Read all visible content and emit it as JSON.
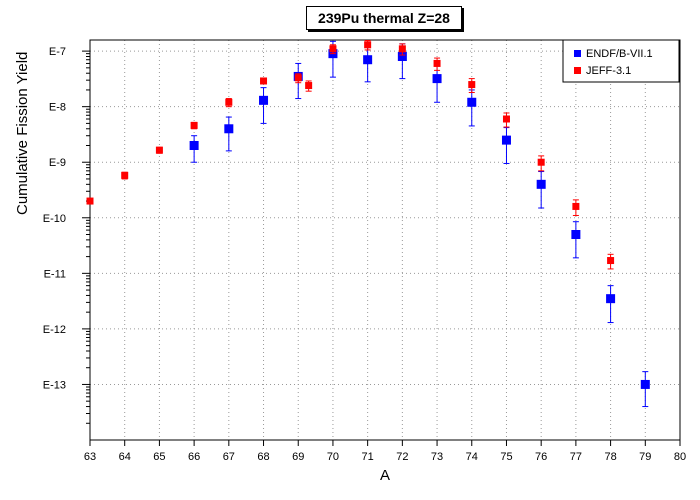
{
  "chart_data": {
    "type": "scatter",
    "title": "239Pu thermal Z=28",
    "xlabel": "A",
    "ylabel": "Cumulative Fission Yield",
    "xlim": [
      63,
      80
    ],
    "ylim_log10": [
      -14,
      -6.8
    ],
    "yscale": "log",
    "grid": true,
    "legend_position": "top-right",
    "x_ticks": [
      "63",
      "64",
      "65",
      "66",
      "67",
      "68",
      "69",
      "70",
      "71",
      "72",
      "73",
      "74",
      "75",
      "76",
      "77",
      "78",
      "79",
      "80"
    ],
    "y_ticks": [
      {
        "label": "E-7",
        "exp": -7
      },
      {
        "label": "E-8",
        "exp": -8
      },
      {
        "label": "E-9",
        "exp": -9
      },
      {
        "label": "E-10",
        "exp": -10
      },
      {
        "label": "E-11",
        "exp": -11
      },
      {
        "label": "E-12",
        "exp": -12
      },
      {
        "label": "E-13",
        "exp": -13
      }
    ],
    "series": [
      {
        "name": "ENDF/B-VII.1",
        "color": "#0000ff",
        "marker": "square",
        "points": [
          {
            "x": 66,
            "y": 2e-09,
            "ylo": 1e-09,
            "yhi": 3e-09
          },
          {
            "x": 67,
            "y": 4e-09,
            "ylo": 1.6e-09,
            "yhi": 6.5e-09
          },
          {
            "x": 68,
            "y": 1.3e-08,
            "ylo": 5e-09,
            "yhi": 2.2e-08
          },
          {
            "x": 69,
            "y": 3.5e-08,
            "ylo": 1.4e-08,
            "yhi": 6e-08
          },
          {
            "x": 70,
            "y": 9e-08,
            "ylo": 3.4e-08,
            "yhi": 1.5e-07
          },
          {
            "x": 71,
            "y": 7e-08,
            "ylo": 2.8e-08,
            "yhi": 1.2e-07
          },
          {
            "x": 72,
            "y": 8e-08,
            "ylo": 3.2e-08,
            "yhi": 1.35e-07
          },
          {
            "x": 73,
            "y": 3.2e-08,
            "ylo": 1.2e-08,
            "yhi": 5.5e-08
          },
          {
            "x": 74,
            "y": 1.2e-08,
            "ylo": 4.5e-09,
            "yhi": 2e-08
          },
          {
            "x": 75,
            "y": 2.5e-09,
            "ylo": 9.5e-10,
            "yhi": 4.2e-09
          },
          {
            "x": 76,
            "y": 4e-10,
            "ylo": 1.5e-10,
            "yhi": 6.8e-10
          },
          {
            "x": 77,
            "y": 5e-11,
            "ylo": 1.9e-11,
            "yhi": 8.5e-11
          },
          {
            "x": 78,
            "y": 3.5e-12,
            "ylo": 1.3e-12,
            "yhi": 6e-12
          },
          {
            "x": 79,
            "y": 1e-13,
            "ylo": 4e-14,
            "yhi": 1.7e-13
          }
        ]
      },
      {
        "name": "JEFF-3.1",
        "color": "#ff0000",
        "marker": "square",
        "points": [
          {
            "x": 63,
            "y": 2e-10,
            "ylo": 1.8e-10,
            "yhi": 2.2e-10
          },
          {
            "x": 64,
            "y": 5.8e-10,
            "ylo": 5e-10,
            "yhi": 6.6e-10
          },
          {
            "x": 65,
            "y": 1.65e-09,
            "ylo": 1.45e-09,
            "yhi": 1.85e-09
          },
          {
            "x": 66,
            "y": 4.6e-09,
            "ylo": 4e-09,
            "yhi": 5.2e-09
          },
          {
            "x": 67,
            "y": 1.2e-08,
            "ylo": 1e-08,
            "yhi": 1.4e-08
          },
          {
            "x": 68,
            "y": 2.9e-08,
            "ylo": 2.6e-08,
            "yhi": 3.2e-08
          },
          {
            "x": 69,
            "y": 3.3e-08,
            "ylo": 2.7e-08,
            "yhi": 3.9e-08
          },
          {
            "x": 69.3,
            "y": 2.4e-08,
            "ylo": 1.9e-08,
            "yhi": 2.9e-08
          },
          {
            "x": 70,
            "y": 1.1e-07,
            "ylo": 9e-08,
            "yhi": 1.3e-07
          },
          {
            "x": 71,
            "y": 1.3e-07,
            "ylo": 1.05e-07,
            "yhi": 1.55e-07
          },
          {
            "x": 72,
            "y": 1.1e-07,
            "ylo": 8.5e-08,
            "yhi": 1.35e-07
          },
          {
            "x": 73,
            "y": 6e-08,
            "ylo": 4.5e-08,
            "yhi": 7.5e-08
          },
          {
            "x": 74,
            "y": 2.5e-08,
            "ylo": 1.8e-08,
            "yhi": 3.2e-08
          },
          {
            "x": 75,
            "y": 6e-09,
            "ylo": 4.3e-09,
            "yhi": 7.7e-09
          },
          {
            "x": 76,
            "y": 1e-09,
            "ylo": 7e-10,
            "yhi": 1.3e-09
          },
          {
            "x": 77,
            "y": 1.6e-10,
            "ylo": 1.1e-10,
            "yhi": 2.1e-10
          },
          {
            "x": 78,
            "y": 1.7e-11,
            "ylo": 1.2e-11,
            "yhi": 2.2e-11
          }
        ]
      }
    ]
  }
}
